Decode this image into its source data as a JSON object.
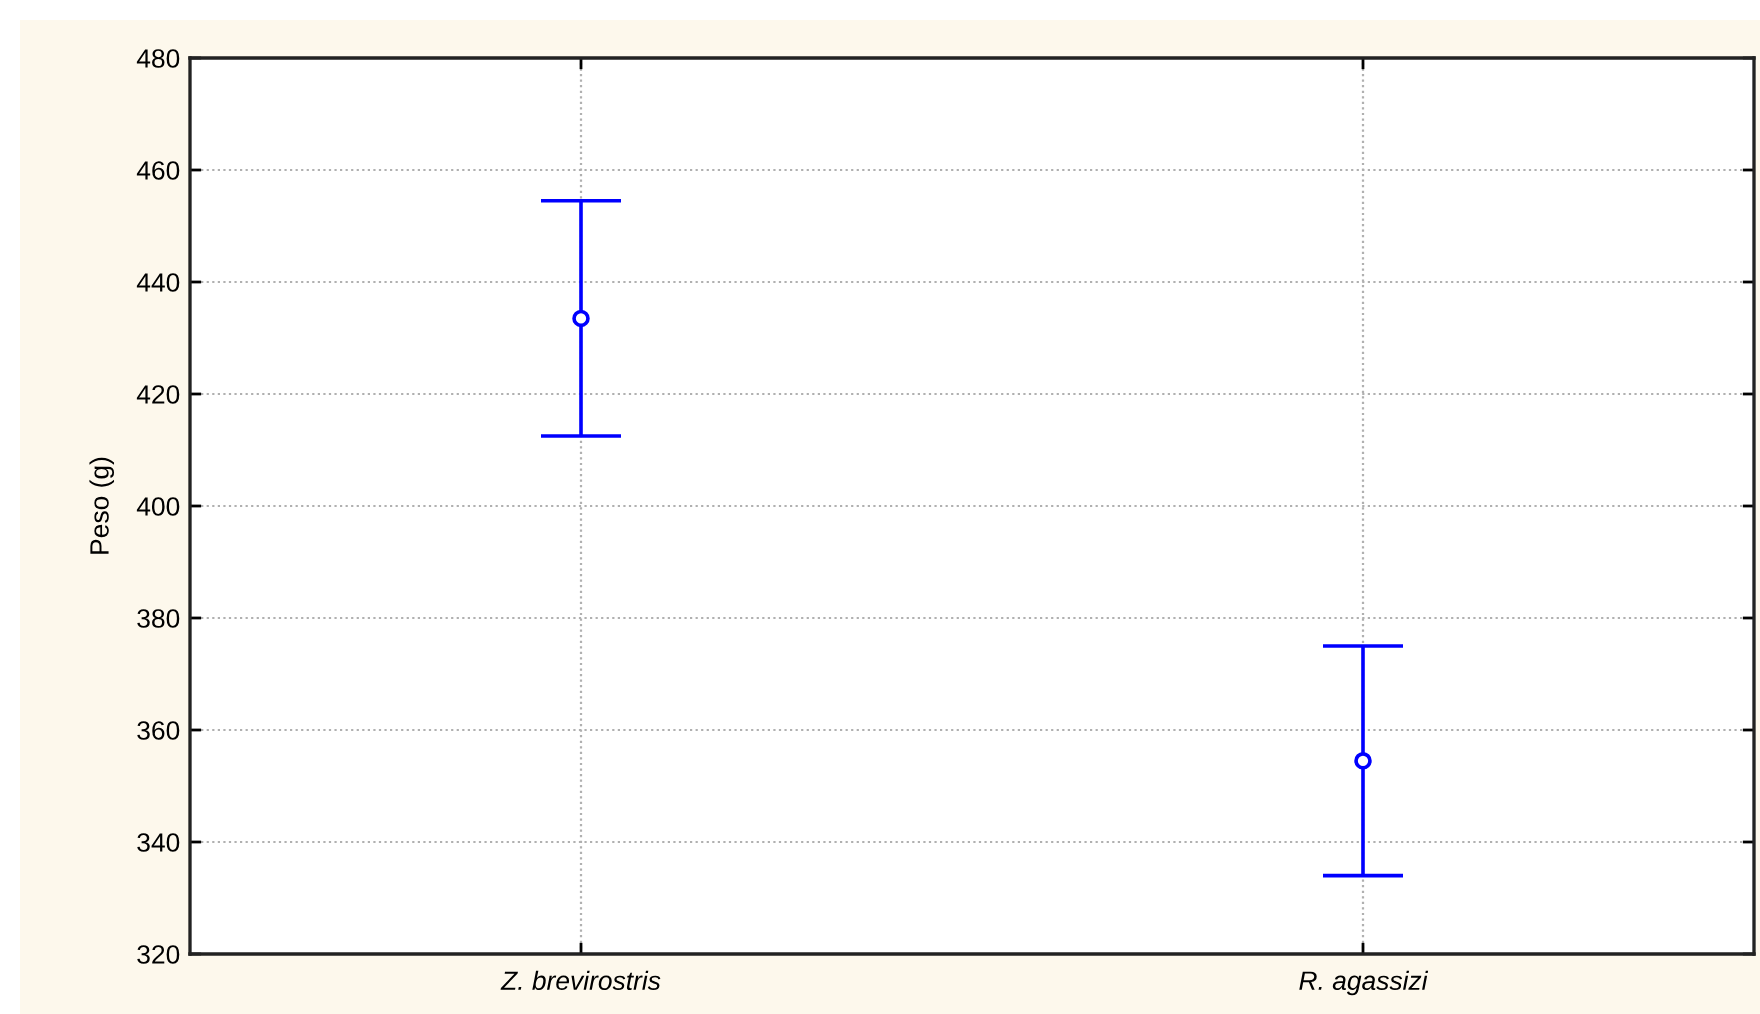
{
  "chart_data": {
    "type": "scatter",
    "ylabel": "Peso (g)",
    "categories": [
      "Z. brevirostris",
      "R. agassizi"
    ],
    "values": [
      433.5,
      354.5
    ],
    "errors": [
      21,
      20.5
    ],
    "color": "#0000ff",
    "marker": "circle",
    "ylim": [
      320,
      480
    ],
    "yticks": [
      320,
      340,
      360,
      380,
      400,
      420,
      440,
      460,
      480
    ],
    "grid": true
  }
}
